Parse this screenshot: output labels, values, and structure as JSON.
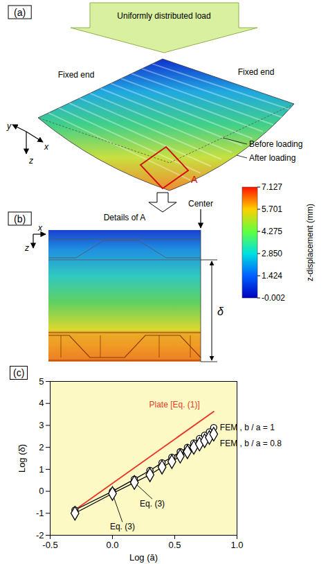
{
  "panel_a": {
    "letter": "(a)",
    "load": "Uniformly distributed load",
    "fixed_ends": [
      "Fixed end",
      "Fixed end"
    ],
    "before": "Before loading",
    "after": "After loading",
    "detail": "A",
    "axes": [
      "y",
      "x",
      "z"
    ]
  },
  "colorbar": {
    "label": "z-displacement (mm)",
    "range": [
      -0.002,
      7.127
    ],
    "ticks": [
      7.127,
      5.701,
      4.275,
      {
        "value": 2.85,
        "label": "2.850"
      },
      1.424,
      -0.002
    ]
  },
  "panel_b": {
    "letter": "(b)",
    "title": "Details of A",
    "center": "Center",
    "dimension": "δ",
    "axes": [
      "x",
      "z"
    ]
  },
  "chart_data": {
    "letter": "(c)",
    "type": "line",
    "x_label": "Log (ā)",
    "y_label": "Log (δ̄)",
    "xlim": [
      -0.5,
      1.0
    ],
    "ylim": [
      -2,
      5
    ],
    "xticks": [
      -0.5,
      {
        "value": 0,
        "label": "0.0"
      },
      0.5,
      {
        "value": 1,
        "label": "1.0"
      }
    ],
    "yticks": [
      -2,
      -1,
      0,
      1,
      2,
      3,
      4,
      5
    ],
    "series": [
      {
        "name": "Plate [Eq. (1)]",
        "color": "#e8392a",
        "marker": "none",
        "line_style": "solid",
        "x": [
          -0.301,
          0.813
        ],
        "values": [
          -0.85,
          3.63
        ]
      },
      {
        "name": "FEM , b / a = 1",
        "color": "#000000",
        "marker": "circle",
        "line_style": "solid",
        "x": [
          -0.301,
          0,
          0.176,
          0.301,
          0.398,
          0.477,
          0.544,
          0.602,
          0.653,
          0.699,
          0.74,
          0.778,
          0.813
        ],
        "values": [
          -0.85,
          0.0,
          0.55,
          0.95,
          1.3,
          1.55,
          1.8,
          2.0,
          2.2,
          2.4,
          2.55,
          2.7,
          2.9
        ]
      },
      {
        "name": "FEM , b / a = 0.8",
        "color": "#000000",
        "marker": "diamond",
        "line_style": "solid",
        "x": [
          -0.301,
          0,
          0.176,
          0.301,
          0.398,
          0.477,
          0.544,
          0.602,
          0.653,
          0.699,
          0.74,
          0.778,
          0.813
        ],
        "values": [
          -1.0,
          -0.1,
          0.4,
          0.75,
          1.1,
          1.35,
          1.6,
          1.8,
          2.0,
          2.15,
          2.3,
          2.45,
          2.6
        ]
      }
    ],
    "annotations": [
      {
        "text": "Eq. (3)",
        "x": 0.32,
        "y": -0.35,
        "to_x": 0.176,
        "to_y": 0.4
      },
      {
        "text": "Eq. (3)",
        "x": 0.08,
        "y": -1.4,
        "to_x": 0,
        "to_y": -0.1
      }
    ]
  }
}
